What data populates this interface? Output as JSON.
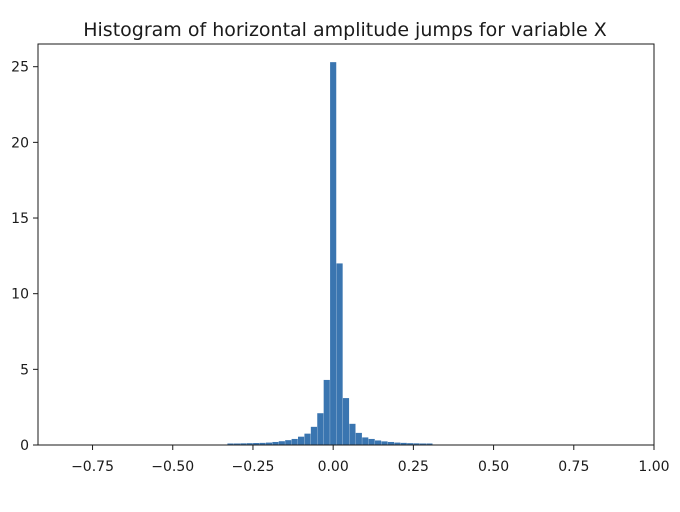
{
  "chart_data": {
    "type": "bar",
    "title": "Histogram of horizontal amplitude jumps for variable X",
    "xlabel": "",
    "ylabel": "",
    "xlim": [
      -0.92,
      1.0
    ],
    "ylim": [
      0,
      26.5
    ],
    "grid": false,
    "bar_color": "#3a75b0",
    "bin_width": 0.0192,
    "x_ticks": [
      -0.75,
      -0.5,
      -0.25,
      0.0,
      0.25,
      0.5,
      0.75,
      1.0
    ],
    "x_tick_labels": [
      "−0.75",
      "−0.50",
      "−0.25",
      "0.00",
      "0.25",
      "0.50",
      "0.75",
      "1.00"
    ],
    "y_ticks": [
      0,
      5,
      10,
      15,
      20,
      25
    ],
    "y_tick_labels": [
      "0",
      "5",
      "10",
      "15",
      "20",
      "25"
    ],
    "bins": [
      {
        "x": -0.32,
        "value": 0.1
      },
      {
        "x": -0.3,
        "value": 0.1
      },
      {
        "x": -0.28,
        "value": 0.11
      },
      {
        "x": -0.26,
        "value": 0.12
      },
      {
        "x": -0.24,
        "value": 0.13
      },
      {
        "x": -0.22,
        "value": 0.14
      },
      {
        "x": -0.2,
        "value": 0.16
      },
      {
        "x": -0.18,
        "value": 0.2
      },
      {
        "x": -0.16,
        "value": 0.25
      },
      {
        "x": -0.14,
        "value": 0.32
      },
      {
        "x": -0.12,
        "value": 0.4
      },
      {
        "x": -0.1,
        "value": 0.55
      },
      {
        "x": -0.08,
        "value": 0.75
      },
      {
        "x": -0.06,
        "value": 1.2
      },
      {
        "x": -0.04,
        "value": 2.1
      },
      {
        "x": -0.02,
        "value": 4.3
      },
      {
        "x": 0.0,
        "value": 25.3
      },
      {
        "x": 0.02,
        "value": 12.0
      },
      {
        "x": 0.04,
        "value": 3.1
      },
      {
        "x": 0.06,
        "value": 1.4
      },
      {
        "x": 0.08,
        "value": 0.8
      },
      {
        "x": 0.1,
        "value": 0.5
      },
      {
        "x": 0.12,
        "value": 0.4
      },
      {
        "x": 0.14,
        "value": 0.3
      },
      {
        "x": 0.16,
        "value": 0.24
      },
      {
        "x": 0.18,
        "value": 0.2
      },
      {
        "x": 0.2,
        "value": 0.16
      },
      {
        "x": 0.22,
        "value": 0.14
      },
      {
        "x": 0.24,
        "value": 0.12
      },
      {
        "x": 0.26,
        "value": 0.11
      },
      {
        "x": 0.28,
        "value": 0.1
      },
      {
        "x": 0.3,
        "value": 0.1
      }
    ]
  }
}
